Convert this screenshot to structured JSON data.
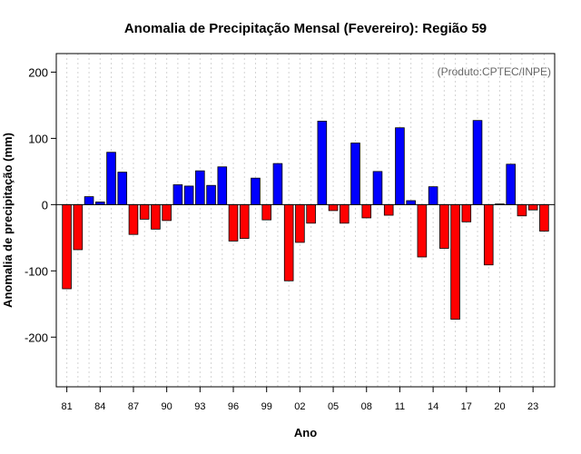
{
  "chart_data": {
    "type": "bar",
    "title": "Anomalia de Precipitação Mensal (Fevereiro): Região 59",
    "xlabel": "Ano",
    "ylabel": "Anomalia de precipitação (mm)",
    "credit": "(Produto:CPTEC/INPE)",
    "ylim": [
      -275,
      228
    ],
    "yticks": [
      -200,
      -100,
      0,
      100,
      200
    ],
    "ytick_labels": [
      "-200",
      "-100",
      "0",
      "100",
      "200"
    ],
    "xtick_labels": [
      "81",
      "84",
      "87",
      "90",
      "93",
      "96",
      "99",
      "02",
      "05",
      "08",
      "11",
      "14",
      "17",
      "20",
      "23"
    ],
    "xtick_every": 3,
    "grid": true,
    "positive_color": "#0000ff",
    "negative_color": "#ff0000",
    "categories": [
      "1981",
      "1982",
      "1983",
      "1984",
      "1985",
      "1986",
      "1987",
      "1988",
      "1989",
      "1990",
      "1991",
      "1992",
      "1993",
      "1994",
      "1995",
      "1996",
      "1997",
      "1998",
      "1999",
      "2000",
      "2001",
      "2002",
      "2003",
      "2004",
      "2005",
      "2006",
      "2007",
      "2008",
      "2009",
      "2010",
      "2011",
      "2012",
      "2013",
      "2014",
      "2015",
      "2016",
      "2017",
      "2018",
      "2019",
      "2020",
      "2021",
      "2022",
      "2023",
      "2024"
    ],
    "values": [
      -127,
      -68,
      12,
      4,
      79,
      49,
      -45,
      -22,
      -37,
      -24,
      30,
      28,
      51,
      29,
      57,
      -55,
      -51,
      40,
      -23,
      62,
      -115,
      -57,
      -28,
      126,
      -9,
      -28,
      93,
      -20,
      50,
      -16,
      116,
      6,
      -79,
      27,
      -66,
      -173,
      -26,
      127,
      -91,
      1,
      61,
      -17,
      -8,
      -40
    ]
  }
}
